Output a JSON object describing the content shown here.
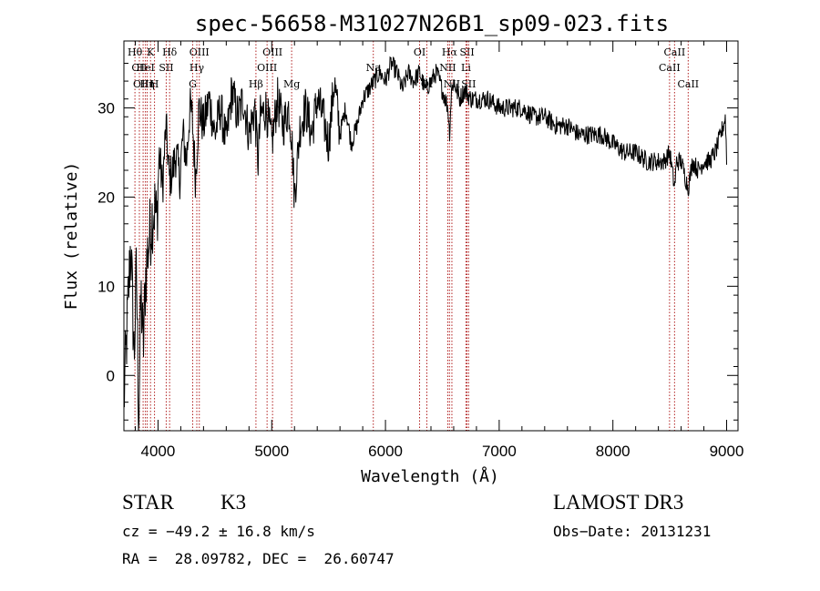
{
  "chart_data": {
    "type": "line",
    "title": "spec-56658-M31027N26B1_sp09-023.fits",
    "xlabel": "Wavelength (Å)",
    "ylabel": "Flux (relative)",
    "xlim": [
      3700,
      9100
    ],
    "ylim": [
      -6.2,
      37.5
    ],
    "xticks": [
      4000,
      5000,
      6000,
      7000,
      8000,
      9000
    ],
    "yticks": [
      0,
      10,
      20,
      30
    ],
    "grid": false,
    "line_color": "#000000",
    "marker_color": "#b22222",
    "series": [
      {
        "name": "flux",
        "x": [
          3700,
          3730,
          3760,
          3790,
          3810,
          3830,
          3850,
          3870,
          3890,
          3910,
          3930,
          3950,
          3970,
          3990,
          4010,
          4040,
          4070,
          4100,
          4130,
          4160,
          4190,
          4220,
          4250,
          4280,
          4300,
          4330,
          4360,
          4400,
          4450,
          4500,
          4550,
          4600,
          4650,
          4700,
          4750,
          4800,
          4850,
          4880,
          4900,
          4950,
          5000,
          5050,
          5100,
          5150,
          5175,
          5200,
          5250,
          5300,
          5350,
          5400,
          5450,
          5500,
          5550,
          5600,
          5650,
          5700,
          5750,
          5800,
          5850,
          5900,
          5950,
          6000,
          6050,
          6100,
          6150,
          6200,
          6250,
          6300,
          6350,
          6400,
          6450,
          6500,
          6550,
          6563,
          6580,
          6600,
          6650,
          6700,
          6750,
          6800,
          6900,
          7000,
          7100,
          7200,
          7300,
          7400,
          7500,
          7600,
          7700,
          7800,
          7900,
          8000,
          8100,
          8200,
          8300,
          8400,
          8450,
          8500,
          8542,
          8560,
          8600,
          8662,
          8700,
          8750,
          8800,
          8850,
          8900,
          8950,
          8990,
          9000
        ],
        "y": [
          -3,
          6,
          15,
          2,
          12,
          -5,
          9,
          3,
          11,
          14,
          16,
          18,
          19,
          17,
          25,
          21,
          28,
          22,
          23,
          25,
          22,
          27,
          24,
          30,
          29,
          22,
          30,
          28,
          31,
          27,
          30,
          26,
          32,
          29,
          31,
          27,
          30,
          24,
          29,
          30,
          26,
          31,
          28,
          30,
          27,
          20,
          28,
          30,
          27,
          31,
          29,
          26,
          33,
          27,
          30,
          26,
          28,
          31,
          32,
          33,
          34,
          33,
          35,
          34,
          32,
          34,
          33,
          34,
          32,
          33,
          34,
          32,
          30,
          27,
          32,
          33,
          31,
          32,
          31,
          31,
          31,
          30,
          30,
          30,
          29,
          29,
          28,
          28,
          27,
          27,
          27,
          26,
          25,
          25,
          24,
          24,
          24,
          25,
          21,
          24,
          24,
          21,
          24,
          23,
          24,
          24,
          25,
          27,
          29,
          24
        ]
      }
    ],
    "line_markers": [
      {
        "label": "Hθ",
        "wave": 3797,
        "row": 1
      },
      {
        "label": "CII",
        "wave": 3836,
        "row": 2
      },
      {
        "label": "OIII",
        "wave": 3869,
        "row": 3
      },
      {
        "label": "K",
        "wave": 3934,
        "row": 1
      },
      {
        "label": "HeI",
        "wave": 3889,
        "row": 2
      },
      {
        "label": "Hη",
        "wave": 3905,
        "row": 3
      },
      {
        "label": "SII",
        "wave": 4072,
        "row": 2
      },
      {
        "label": "H",
        "wave": 3969,
        "row": 3
      },
      {
        "label": "Hδ",
        "wave": 4102,
        "row": 1
      },
      {
        "label": "OIII",
        "wave": 4363,
        "row": 1
      },
      {
        "label": "Hγ",
        "wave": 4341,
        "row": 2
      },
      {
        "label": "G",
        "wave": 4305,
        "row": 3
      },
      {
        "label": "OIII",
        "wave": 5007,
        "row": 1
      },
      {
        "label": "OIII",
        "wave": 4959,
        "row": 2
      },
      {
        "label": "Hβ",
        "wave": 4861,
        "row": 3
      },
      {
        "label": "Mg",
        "wave": 5175,
        "row": 3
      },
      {
        "label": "Na",
        "wave": 5893,
        "row": 2
      },
      {
        "label": "OI",
        "wave": 6300,
        "row": 1
      },
      {
        "label": "OI",
        "wave": 6364,
        "row": 3
      },
      {
        "label": "Hα",
        "wave": 6563,
        "row": 1
      },
      {
        "label": "SII",
        "wave": 6717,
        "row": 1
      },
      {
        "label": "NII",
        "wave": 6548,
        "row": 2
      },
      {
        "label": "Li",
        "wave": 6708,
        "row": 2
      },
      {
        "label": "NII",
        "wave": 6584,
        "row": 3
      },
      {
        "label": "SII",
        "wave": 6731,
        "row": 3
      },
      {
        "label": "CaII",
        "wave": 8542,
        "row": 1
      },
      {
        "label": "CaII",
        "wave": 8498,
        "row": 2
      },
      {
        "label": "CaII",
        "wave": 8662,
        "row": 3
      }
    ]
  },
  "info": {
    "class_label": "STAR",
    "subclass": "K3",
    "survey": "LAMOST DR3",
    "cz": "cz = −49.2 ± 16.8 km/s",
    "obs_date": "Obs−Date: 20131231",
    "coords": "RA =  28.09782, DEC =  26.60747"
  }
}
